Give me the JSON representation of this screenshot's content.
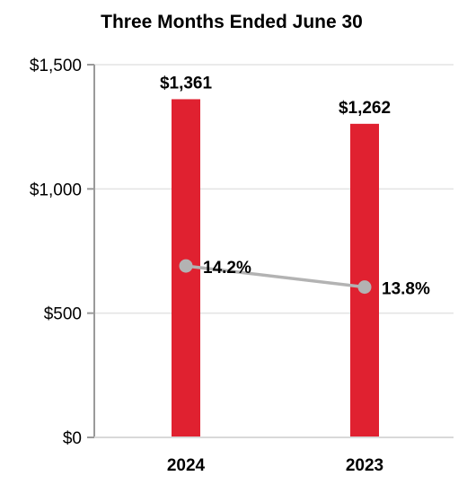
{
  "chart_data": {
    "type": "bar",
    "title": "Three Months Ended June 30",
    "categories": [
      "2024",
      "2023"
    ],
    "series": [
      {
        "type": "bar",
        "values": [
          1361,
          1262
        ],
        "labels": [
          "$1,361",
          "$1,262"
        ],
        "color": "#e02130"
      },
      {
        "type": "line",
        "values": [
          690,
          605
        ],
        "labels": [
          "14.2%",
          "13.8%"
        ],
        "color": "#b3b3b3"
      }
    ],
    "yticks": [
      0,
      500,
      1000,
      1500
    ],
    "ytick_labels": [
      "$0",
      "$500",
      "$1,000",
      "$1,500"
    ],
    "ylim": [
      0,
      1500
    ],
    "grid": true,
    "legend": "none"
  }
}
